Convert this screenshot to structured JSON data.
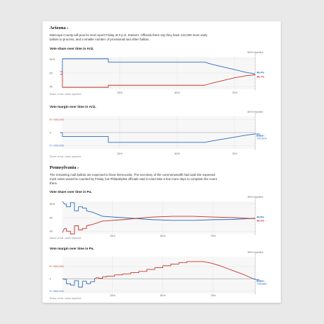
{
  "arizona": {
    "title": "Arizona ›",
    "description": "Maricopa County will post its next report Friday at 9 p.m. Eastern. Officials there say they have 142,000 more early ballots to process, and a smaller number of provisional and other ballots."
  },
  "pennsylvania": {
    "title": "Pennsylvania ›",
    "description": "The remaining mail ballots are expected to favor Democrats. The secretary of the commonwealth had said she expected most votes would be counted by Friday, but Philadelphia officials said it could take a few more days to complete the count there."
  },
  "colors": {
    "biden": "#2f6bbf",
    "trump": "#c8342c",
    "grid": "#e4e4e4",
    "zero": "#999999"
  },
  "chart_data": [
    {
      "id": "az-share",
      "type": "line",
      "title": "Vote share over time in Ariz.",
      "xlabel": "Share of est. votes reported",
      "x_ticks": [
        "25%",
        "50%",
        "75%"
      ],
      "y_ticks": [
        "60%",
        "50",
        "40"
      ],
      "ylim": [
        38,
        62
      ],
      "xlim": [
        0,
        84
      ],
      "reported_marker": {
        "x": 84,
        "label": "84% reported"
      },
      "end_labels": [
        "49.4%",
        "48.7%"
      ],
      "series": [
        {
          "color": "biden",
          "points": [
            [
              -1,
              49
            ],
            [
              0,
              49
            ],
            [
              0,
              60.5
            ],
            [
              20,
              60.5
            ],
            [
              20,
              58
            ],
            [
              62,
              58
            ],
            [
              65,
              56.5
            ],
            [
              70,
              54.5
            ],
            [
              75,
              52.5
            ],
            [
              80,
              50.5
            ],
            [
              84,
              49.4
            ]
          ]
        },
        {
          "color": "trump",
          "points": [
            [
              -1,
              51
            ],
            [
              0,
              51
            ],
            [
              0,
              39.5
            ],
            [
              20,
              39.5
            ],
            [
              20,
              41
            ],
            [
              62,
              41
            ],
            [
              65,
              42.5
            ],
            [
              70,
              44.5
            ],
            [
              75,
              46.5
            ],
            [
              80,
              48
            ],
            [
              84,
              48.7
            ]
          ]
        }
      ]
    },
    {
      "id": "az-margin",
      "type": "line",
      "title": "Vote margin over time in Ariz.",
      "xlabel": "Share of est. votes reported",
      "x_ticks": [
        "25%",
        "50%",
        "75%"
      ],
      "y_ticks": [
        "R +200,000",
        "0",
        "D +200,000"
      ],
      "ylim": [
        -250000,
        250000
      ],
      "xlim": [
        0,
        84
      ],
      "reported_marker": {
        "x": 84,
        "label": "84% reported"
      },
      "end_labels": [
        "Biden",
        "+20,514"
      ],
      "series": [
        {
          "color": "biden",
          "points": [
            [
              -1,
              0
            ],
            [
              0,
              0
            ],
            [
              0,
              -60000
            ],
            [
              20,
              -60000
            ],
            [
              20,
              -150000
            ],
            [
              62,
              -150000
            ],
            [
              65,
              -130000
            ],
            [
              70,
              -100000
            ],
            [
              75,
              -70000
            ],
            [
              80,
              -40000
            ],
            [
              84,
              -20514
            ],
            [
              86,
              -20514
            ]
          ]
        }
      ]
    },
    {
      "id": "pa-share",
      "type": "line",
      "title": "Vote share over time in Pa.",
      "xlabel": "Share of est. votes reported",
      "x_ticks": [
        "25%",
        "50%",
        "75%"
      ],
      "y_ticks": [
        "60%",
        "50",
        "40"
      ],
      "ylim": [
        38,
        62
      ],
      "xlim": [
        0,
        96
      ],
      "reported_marker": {
        "x": 96,
        "label": "96% reported"
      },
      "end_labels": [
        "49.5%",
        "49.2%"
      ],
      "series": [
        {
          "color": "biden",
          "points": [
            [
              0,
              62
            ],
            [
              1,
              60
            ],
            [
              2,
              60
            ],
            [
              2,
              58
            ],
            [
              4,
              58
            ],
            [
              4,
              61
            ],
            [
              6,
              61
            ],
            [
              6,
              55
            ],
            [
              8,
              55
            ],
            [
              8,
              58
            ],
            [
              10,
              58
            ],
            [
              10,
              57
            ],
            [
              12,
              57
            ],
            [
              12,
              55
            ],
            [
              15,
              54
            ],
            [
              20,
              51
            ],
            [
              30,
              50
            ],
            [
              45,
              48.5
            ],
            [
              55,
              48
            ],
            [
              65,
              48
            ],
            [
              75,
              48.5
            ],
            [
              85,
              48.7
            ],
            [
              96,
              49.5
            ]
          ]
        },
        {
          "color": "trump",
          "points": [
            [
              0,
              39
            ],
            [
              1,
              42
            ],
            [
              2,
              42
            ],
            [
              2,
              40
            ],
            [
              4,
              40
            ],
            [
              4,
              38
            ],
            [
              6,
              38
            ],
            [
              6,
              44
            ],
            [
              8,
              44
            ],
            [
              8,
              41
            ],
            [
              10,
              41
            ],
            [
              10,
              42
            ],
            [
              12,
              42
            ],
            [
              12,
              44
            ],
            [
              15,
              45
            ],
            [
              20,
              47.5
            ],
            [
              30,
              48.5
            ],
            [
              45,
              50.5
            ],
            [
              55,
              51
            ],
            [
              65,
              51
            ],
            [
              75,
              50.5
            ],
            [
              85,
              50
            ],
            [
              96,
              49.2
            ]
          ]
        }
      ]
    },
    {
      "id": "pa-margin",
      "type": "line",
      "title": "Vote margin over time in Pa.",
      "xlabel": "Share of est. votes reported",
      "x_ticks": [
        "25%",
        "50%",
        "75%"
      ],
      "y_ticks": [
        "R +500,000",
        "0",
        "D +500,000"
      ],
      "ylim": [
        -600000,
        900000
      ],
      "xlim": [
        0,
        96
      ],
      "reported_marker": {
        "x": 96,
        "label": "96% reported"
      },
      "end_labels": [
        "Biden",
        "+28,883"
      ],
      "series": [
        {
          "color": "biden",
          "points": [
            [
              0,
              0
            ],
            [
              1,
              -20000
            ],
            [
              2,
              -20000
            ],
            [
              2,
              -200000
            ],
            [
              4,
              -200000
            ],
            [
              4,
              -260000
            ],
            [
              6,
              -260000
            ],
            [
              6,
              -80000
            ],
            [
              8,
              -80000
            ],
            [
              8,
              -340000
            ],
            [
              10,
              -340000
            ],
            [
              10,
              -100000
            ],
            [
              12,
              -100000
            ],
            [
              12,
              -200000
            ],
            [
              14,
              -200000
            ],
            [
              14,
              -120000
            ],
            [
              16,
              -120000
            ],
            [
              16,
              0
            ]
          ]
        },
        {
          "color": "trump",
          "points": [
            [
              16,
              0
            ],
            [
              17,
              40000
            ],
            [
              18,
              40000
            ],
            [
              18,
              20000
            ],
            [
              20,
              20000
            ],
            [
              20,
              80000
            ],
            [
              22,
              80000
            ],
            [
              22,
              110000
            ],
            [
              26,
              110000
            ],
            [
              26,
              160000
            ],
            [
              30,
              160000
            ],
            [
              30,
              200000
            ],
            [
              34,
              200000
            ],
            [
              34,
              250000
            ],
            [
              38,
              250000
            ],
            [
              38,
              300000
            ],
            [
              42,
              300000
            ],
            [
              42,
              380000
            ],
            [
              46,
              380000
            ],
            [
              46,
              450000
            ],
            [
              50,
              450000
            ],
            [
              50,
              530000
            ],
            [
              54,
              530000
            ],
            [
              54,
              600000
            ],
            [
              58,
              600000
            ],
            [
              58,
              660000
            ],
            [
              62,
              660000
            ],
            [
              62,
              700000
            ],
            [
              70,
              700000
            ],
            [
              74,
              640000
            ],
            [
              78,
              540000
            ],
            [
              82,
              420000
            ],
            [
              86,
              300000
            ],
            [
              90,
              180000
            ],
            [
              93,
              70000
            ],
            [
              95,
              0
            ]
          ]
        },
        {
          "color": "biden",
          "points": [
            [
              95,
              0
            ],
            [
              96,
              -28883
            ],
            [
              98,
              -28883
            ]
          ]
        }
      ]
    }
  ]
}
